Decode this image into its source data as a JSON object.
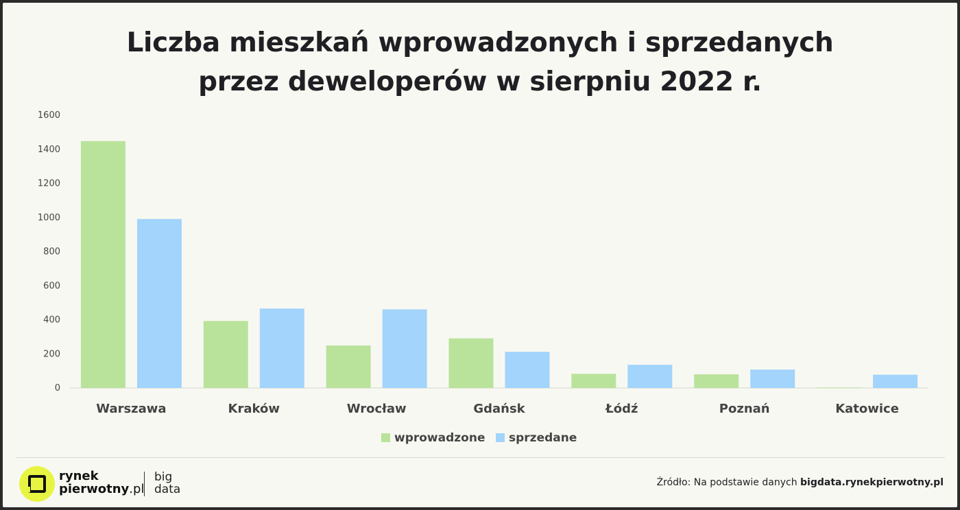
{
  "title": {
    "line1": "Liczba mieszkań wprowadzonych i sprzedanych",
    "line2": "przez deweloperów w sierpniu 2022 r."
  },
  "chart_data": {
    "type": "bar",
    "categories": [
      "Warszawa",
      "Kraków",
      "Wrocław",
      "Gdańsk",
      "Łódź",
      "Poznań",
      "Katowice"
    ],
    "series": [
      {
        "name": "wprowadzone",
        "color": "#b9e39a",
        "values": [
          1448,
          393,
          249,
          291,
          83,
          80,
          3
        ]
      },
      {
        "name": "sprzedane",
        "color": "#a2d4fc",
        "values": [
          991,
          466,
          461,
          212,
          136,
          108,
          78
        ]
      }
    ],
    "ylim": [
      0,
      1600
    ],
    "yticks": [
      0,
      200,
      400,
      600,
      800,
      1000,
      1200,
      1400,
      1600
    ],
    "grid": false,
    "legend": "bottom"
  },
  "footer": {
    "brand_line1": "rynek",
    "brand_line2_bold": "pierwotny",
    "brand_line2_light": ".pl",
    "bigdata_line1": "big",
    "bigdata_line2": "data",
    "source_prefix": "Źródło: Na podstawie danych ",
    "source_bold": "bigdata.rynekpierwotny.pl"
  },
  "icons": {
    "logo": "rynekpierwotny-logo-icon"
  }
}
